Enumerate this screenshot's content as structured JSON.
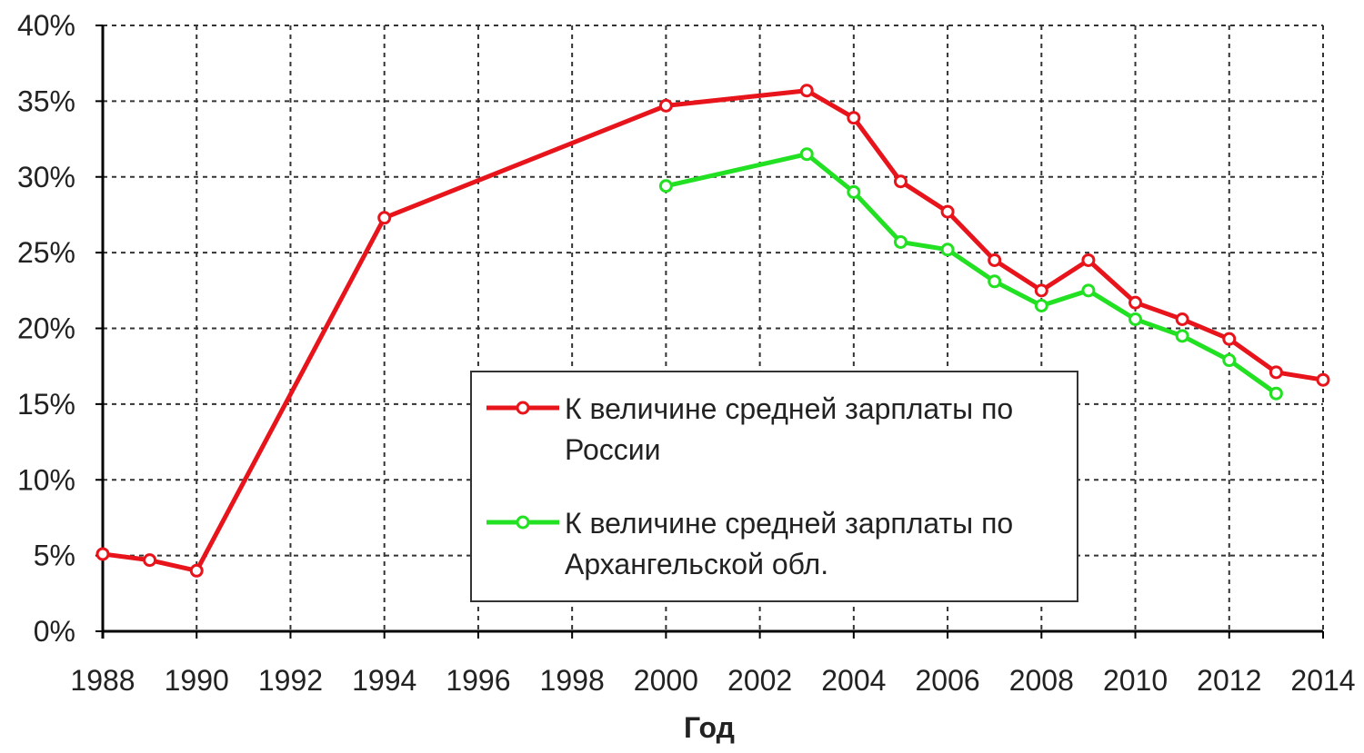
{
  "chart_data": {
    "type": "line",
    "x_label": "Год",
    "x": [
      1988,
      1989,
      1990,
      1994,
      2000,
      2003,
      2004,
      2005,
      2006,
      2007,
      2008,
      2009,
      2010,
      2011,
      2012,
      2013,
      2014
    ],
    "series": [
      {
        "name": "К величине средней зарплаты по России",
        "color": "#e8141b",
        "values": [
          5.1,
          4.7,
          4.0,
          27.3,
          34.7,
          35.7,
          33.9,
          29.7,
          27.7,
          24.5,
          22.5,
          24.5,
          21.7,
          20.6,
          19.3,
          17.1,
          16.6
        ]
      },
      {
        "name": "К величине средней зарплаты по Архангельской обл.",
        "color": "#22e022",
        "values": [
          null,
          null,
          null,
          null,
          29.4,
          31.5,
          29.0,
          25.7,
          25.2,
          23.1,
          21.5,
          22.5,
          20.6,
          19.5,
          17.9,
          15.7,
          null
        ]
      }
    ],
    "xlim": [
      1988,
      2014
    ],
    "xticks": [
      1988,
      1990,
      1992,
      1994,
      1996,
      1998,
      2000,
      2002,
      2004,
      2006,
      2008,
      2010,
      2012,
      2014
    ],
    "ylim": [
      0,
      40
    ],
    "yticks": [
      {
        "value": 0,
        "label": "0%"
      },
      {
        "value": 5,
        "label": "5%"
      },
      {
        "value": 10,
        "label": "10%"
      },
      {
        "value": 15,
        "label": "15%"
      },
      {
        "value": 20,
        "label": "20%"
      },
      {
        "value": 25,
        "label": "25%"
      },
      {
        "value": 30,
        "label": "30%"
      },
      {
        "value": 35,
        "label": "35%"
      },
      {
        "value": 40,
        "label": "40%"
      }
    ],
    "grid": true
  }
}
